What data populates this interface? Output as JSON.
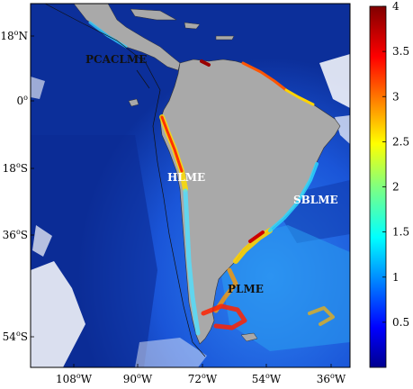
{
  "map": {
    "lat_ticks": [
      {
        "label": "18°N",
        "deg": "18",
        "sup": "o",
        "hem": "N"
      },
      {
        "label": "0°",
        "deg": "0",
        "sup": "o",
        "hem": ""
      },
      {
        "label": "18°S",
        "deg": "18",
        "sup": "o",
        "hem": "S"
      },
      {
        "label": "36°S",
        "deg": "36",
        "sup": "o",
        "hem": "S"
      },
      {
        "label": "54°S",
        "deg": "54",
        "sup": "o",
        "hem": "S"
      }
    ],
    "lon_ticks": [
      {
        "label": "108°W",
        "deg": "108",
        "sup": "o",
        "hem": "W"
      },
      {
        "label": "90°W",
        "deg": "90",
        "sup": "o",
        "hem": "W"
      },
      {
        "label": "72°W",
        "deg": "72",
        "sup": "o",
        "hem": "W"
      },
      {
        "label": "54°W",
        "deg": "54",
        "sup": "o",
        "hem": "W"
      },
      {
        "label": "36°W",
        "deg": "36",
        "sup": "o",
        "hem": "W"
      }
    ],
    "regions": [
      {
        "id": "pcaclme",
        "label": "PCACLME"
      },
      {
        "id": "hlme",
        "label": "HLME"
      },
      {
        "id": "sblme",
        "label": "SBLME"
      },
      {
        "id": "plme",
        "label": "PLME"
      }
    ],
    "colors": {
      "ocean_deep": "#0a2a8c",
      "ocean_mid": "#1446d8",
      "ocean_light": "#2a7cf0",
      "land": "#a9a9a9",
      "cloud": "#ffffff"
    }
  },
  "colorbar": {
    "min": 0,
    "max": 4,
    "ticks": [
      "0.5",
      "1",
      "1.5",
      "2",
      "2.5",
      "3",
      "3.5",
      "4"
    ],
    "stops": [
      "#00008f",
      "#0000ff",
      "#0080ff",
      "#00ffff",
      "#80ff80",
      "#ffff00",
      "#ff8000",
      "#ff0000",
      "#800000"
    ]
  }
}
